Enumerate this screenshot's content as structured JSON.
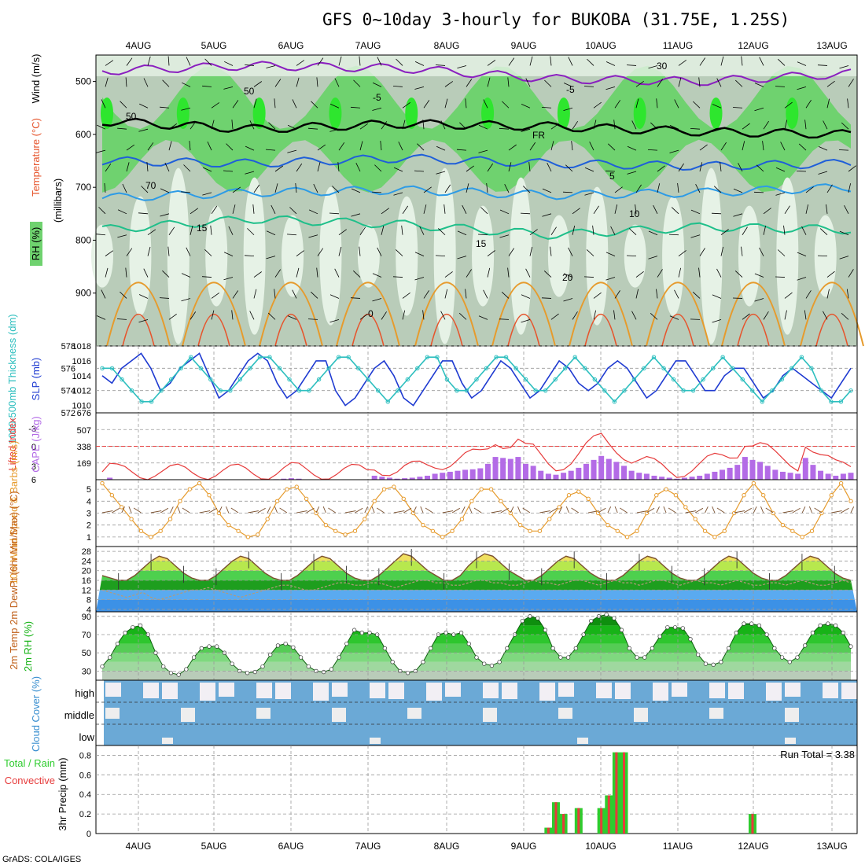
{
  "title": "GFS 0~10day 3-hourly for BUKOBA (31.75E, 1.25S)",
  "footer": "GrADS: COLA/IGES",
  "run_total_label": "Run Total = 3.38",
  "colors": {
    "rh_light": "#e6f2e6",
    "rh_mid": "#b9ccb9",
    "rh_green": "#6fd26f",
    "rh_bright": "#2ee62e",
    "temp_purple": "#8a1fbf",
    "temp_blue": "#1f5fd9",
    "temp_lightblue": "#2d9be6",
    "temp_teal": "#1fbf8a",
    "temp_orange": "#e69b2d",
    "temp_red": "#e6552d",
    "slp": "#1f3bd1",
    "thickness": "#2ebfbf",
    "cape": "#b36be6",
    "lifted": "#e63b3b",
    "wind": "#e69b2d",
    "temp_fill": "#f0a030",
    "rh2m": "#17b317",
    "cloud": "#6ba9d6",
    "precip_total": "#2ecc2e",
    "precip_conv": "#e63b3b"
  },
  "chart_data": [
    {
      "id": "upper-air",
      "type": "heatmap",
      "title": "GFS 0~10day 3-hourly for BUKOBA (31.75E, 1.25S)",
      "x_labels": [
        "4AUG",
        "5AUG",
        "6AUG",
        "7AUG",
        "8AUG",
        "9AUG",
        "10AUG",
        "11AUG",
        "12AUG",
        "13AUG"
      ],
      "ylabel": "(millibars)",
      "side_labels": [
        "Wind (m/s)",
        "Temperature (°C)",
        "RH (%)"
      ],
      "y_ticks": [
        500,
        600,
        700,
        800,
        900
      ],
      "ylim": [
        1000,
        450
      ],
      "contour_labels": [
        "-5",
        "FR",
        "5",
        "10",
        "15",
        "20",
        "0",
        "50",
        "30",
        "70"
      ],
      "isotherms": [
        {
          "name": "-5",
          "p": [
            480,
            470,
            475,
            495,
            500,
            485
          ]
        },
        {
          "name": "FR",
          "p": [
            575,
            590,
            580,
            585,
            595,
            600
          ]
        },
        {
          "name": "5",
          "p": [
            650,
            655,
            645,
            655,
            660,
            655
          ]
        },
        {
          "name": "10",
          "p": [
            720,
            710,
            705,
            715,
            710,
            700
          ]
        },
        {
          "name": "15",
          "p": [
            780,
            760,
            770,
            790,
            775,
            780
          ]
        }
      ]
    },
    {
      "id": "slp-thickness",
      "type": "line",
      "ylabel_left": "1000-500mb Thickness (dm)",
      "ylabel_right": "SLP (mb)",
      "y_ticks_left": [
        572,
        574,
        576,
        578
      ],
      "y_ticks_right": [
        1010,
        1012,
        1014,
        1016,
        1018
      ],
      "series": [
        {
          "name": "SLP",
          "values": [
            1014,
            1013,
            1015,
            1016,
            1017,
            1015,
            1012,
            1013,
            1015,
            1016,
            1017,
            1014,
            1011,
            1012,
            1014,
            1016,
            1017,
            1016,
            1013,
            1011,
            1012,
            1014,
            1016,
            1016,
            1012,
            1010,
            1011,
            1013,
            1015,
            1016,
            1014,
            1011,
            1010,
            1012,
            1014,
            1016,
            1016,
            1013,
            1011,
            1012,
            1014,
            1016,
            1015,
            1013,
            1011,
            1012,
            1014,
            1016,
            1015,
            1013,
            1012,
            1013,
            1015,
            1016,
            1015,
            1013,
            1011,
            1012,
            1014,
            1016,
            1016,
            1014,
            1012,
            1012,
            1014,
            1015,
            1015,
            1013,
            1011,
            1012,
            1014,
            1015,
            1014,
            1013,
            1012,
            1011,
            1013,
            1015
          ]
        },
        {
          "name": "Thickness",
          "values": [
            576,
            576,
            575,
            574,
            573,
            573,
            574,
            575,
            576,
            577,
            576,
            575,
            574,
            574,
            575,
            576,
            577,
            577,
            576,
            575,
            574,
            574,
            575,
            576,
            577,
            577,
            576,
            575,
            574,
            573,
            574,
            575,
            576,
            577,
            577,
            575,
            574,
            574,
            575,
            576,
            577,
            577,
            576,
            575,
            574,
            574,
            575,
            576,
            577,
            576,
            575,
            574,
            573,
            574,
            575,
            576,
            577,
            576,
            575,
            574,
            574,
            575,
            576,
            577,
            576,
            575,
            574,
            573,
            574,
            575,
            576,
            577,
            576,
            574,
            573,
            573,
            574
          ]
        }
      ]
    },
    {
      "id": "cape-li",
      "type": "bar",
      "ylabel_left": "Lifted Index",
      "ylabel_right": "CAPE (J/kg)",
      "y_ticks_left": [
        "-3",
        "0",
        "3",
        "6"
      ],
      "y_ticks_right": [
        "676",
        "507",
        "338",
        "169"
      ],
      "cape_values": [
        0,
        20,
        0,
        0,
        0,
        0,
        0,
        5,
        0,
        0,
        0,
        0,
        0,
        5,
        0,
        0,
        0,
        0,
        0,
        0,
        0,
        0,
        0,
        5,
        10,
        15,
        10,
        0,
        0,
        0,
        0,
        0,
        0,
        0,
        0,
        0,
        40,
        30,
        20,
        10,
        15,
        20,
        30,
        40,
        60,
        70,
        80,
        90,
        100,
        105,
        115,
        160,
        230,
        220,
        210,
        230,
        160,
        140,
        90,
        60,
        50,
        70,
        90,
        120,
        160,
        200,
        240,
        210,
        180,
        140,
        90,
        70,
        60,
        40,
        30,
        20,
        10,
        20,
        30,
        40,
        60,
        80,
        100,
        120,
        150,
        230,
        200,
        180,
        140,
        100,
        80,
        70,
        60,
        220,
        150,
        90,
        60,
        40,
        60,
        70
      ]
    },
    {
      "id": "wind10m",
      "type": "line",
      "ylabel": "10m Wind Speed & Barbs (m/s)",
      "y_ticks": [
        1,
        2,
        3,
        4,
        5
      ],
      "values": [
        5.5,
        4.5,
        3.5,
        2.5,
        1.5,
        1,
        1.5,
        2.5,
        4,
        5,
        5.5,
        4.5,
        3,
        2,
        1.5,
        1,
        1.2,
        2.5,
        4,
        5,
        5.2,
        4.2,
        3,
        2,
        1.5,
        1.2,
        1.5,
        2.5,
        4,
        5,
        5.2,
        4.2,
        3,
        2,
        1.5,
        1,
        1.5,
        2.5,
        4,
        5,
        5,
        4,
        3,
        2,
        1.5,
        1.5,
        2.5,
        3.5,
        4.5,
        4.8,
        4.2,
        3,
        2,
        1.5,
        1,
        1.5,
        3,
        4.5,
        5,
        4.5,
        3.5,
        2.5,
        1.5,
        1,
        1.5,
        3,
        4.5,
        5.5,
        4.5,
        3,
        2,
        1.5,
        1,
        1.5,
        3,
        4.5,
        5.5,
        4
      ]
    },
    {
      "id": "temp2m",
      "type": "area",
      "ylabel": "2m Temp 2m DewPt (6hr Min/Max) (°C)",
      "y_ticks": [
        4,
        8,
        12,
        16,
        20,
        24,
        28
      ],
      "temp": [
        18,
        17,
        16,
        16,
        18,
        21,
        24,
        26,
        25,
        22,
        19,
        17,
        16,
        16,
        18,
        21,
        24,
        26,
        25,
        22,
        19,
        17,
        16,
        16,
        18,
        21,
        24,
        26,
        25,
        22,
        19,
        17,
        16,
        16,
        18,
        21,
        24,
        27,
        26,
        23,
        20,
        18,
        16,
        16,
        18,
        22,
        25,
        27,
        26,
        23,
        20,
        18,
        16,
        16,
        18,
        21,
        24,
        26,
        25,
        22,
        19,
        17,
        16,
        16,
        18,
        21,
        24,
        26,
        25,
        22,
        19,
        17,
        16,
        16,
        18,
        21,
        24,
        26,
        25,
        22,
        19,
        17,
        16,
        16,
        18,
        21,
        24,
        26,
        25,
        22,
        19,
        17,
        16
      ],
      "dewpt": [
        12,
        11,
        10,
        9,
        10,
        11,
        9,
        8,
        9,
        10,
        11,
        12,
        12,
        13,
        12,
        11,
        10,
        9,
        10,
        11,
        12,
        13,
        14,
        14,
        13,
        12,
        12,
        13,
        14,
        15,
        15,
        14,
        14,
        15,
        15,
        14,
        13,
        14,
        15,
        16,
        16,
        15,
        15,
        14,
        14,
        15,
        16,
        16,
        15,
        15,
        14,
        14,
        15,
        16,
        15,
        15,
        14,
        15,
        16,
        16,
        15,
        14,
        15,
        16,
        15,
        15,
        14,
        15,
        16,
        16,
        15,
        14,
        15,
        16,
        15,
        15,
        14,
        15,
        16,
        15,
        14,
        14,
        15,
        15,
        14,
        15,
        16,
        15,
        14,
        14,
        15,
        16,
        15
      ]
    },
    {
      "id": "rh2m",
      "type": "area",
      "ylabel": "2m RH (%)",
      "y_ticks": [
        30,
        50,
        70,
        90
      ],
      "values": [
        35,
        45,
        60,
        72,
        78,
        80,
        70,
        50,
        35,
        28,
        26,
        32,
        45,
        55,
        57,
        57,
        50,
        38,
        30,
        28,
        29,
        35,
        48,
        58,
        60,
        56,
        45,
        35,
        30,
        29,
        32,
        45,
        60,
        75,
        72,
        72,
        70,
        55,
        40,
        30,
        28,
        30,
        40,
        55,
        70,
        72,
        70,
        72,
        60,
        45,
        38,
        36,
        40,
        55,
        70,
        85,
        90,
        88,
        75,
        55,
        45,
        45,
        55,
        70,
        85,
        90,
        92,
        88,
        75,
        55,
        45,
        45,
        55,
        68,
        78,
        78,
        77,
        65,
        48,
        38,
        37,
        40,
        55,
        72,
        82,
        82,
        80,
        70,
        55,
        45,
        40,
        45,
        58,
        72,
        80,
        82,
        80,
        72,
        57
      ]
    },
    {
      "id": "cloud",
      "type": "heatmap",
      "ylabel": "Cloud Cover (%)",
      "rows": [
        "high",
        "middle",
        "low"
      ]
    },
    {
      "id": "precip",
      "type": "bar",
      "ylabel": "3hr Precip (mm)",
      "side_labels": [
        "Total / Rain",
        "Convective"
      ],
      "run_total": "3.38",
      "y_ticks": [
        0,
        0.2,
        0.4,
        0.6,
        0.8
      ],
      "ylim": [
        0,
        0.9
      ],
      "values": [
        0,
        0,
        0,
        0,
        0,
        0,
        0,
        0,
        0,
        0,
        0,
        0,
        0,
        0,
        0,
        0,
        0,
        0,
        0,
        0,
        0,
        0,
        0,
        0,
        0,
        0,
        0,
        0,
        0,
        0,
        0,
        0,
        0,
        0,
        0,
        0,
        0,
        0,
        0,
        0,
        0,
        0,
        0,
        0,
        0,
        0,
        0,
        0,
        0,
        0,
        0,
        0,
        0,
        0,
        0,
        0,
        0,
        0,
        0,
        0.06,
        0.32,
        0.2,
        0,
        0.26,
        0,
        0,
        0.26,
        0.39,
        0.83,
        0.83,
        0,
        0,
        0,
        0,
        0,
        0,
        0,
        0,
        0,
        0,
        0,
        0,
        0,
        0,
        0,
        0,
        0.2,
        0,
        0,
        0,
        0,
        0,
        0,
        0,
        0,
        0,
        0,
        0,
        0,
        0
      ]
    }
  ]
}
